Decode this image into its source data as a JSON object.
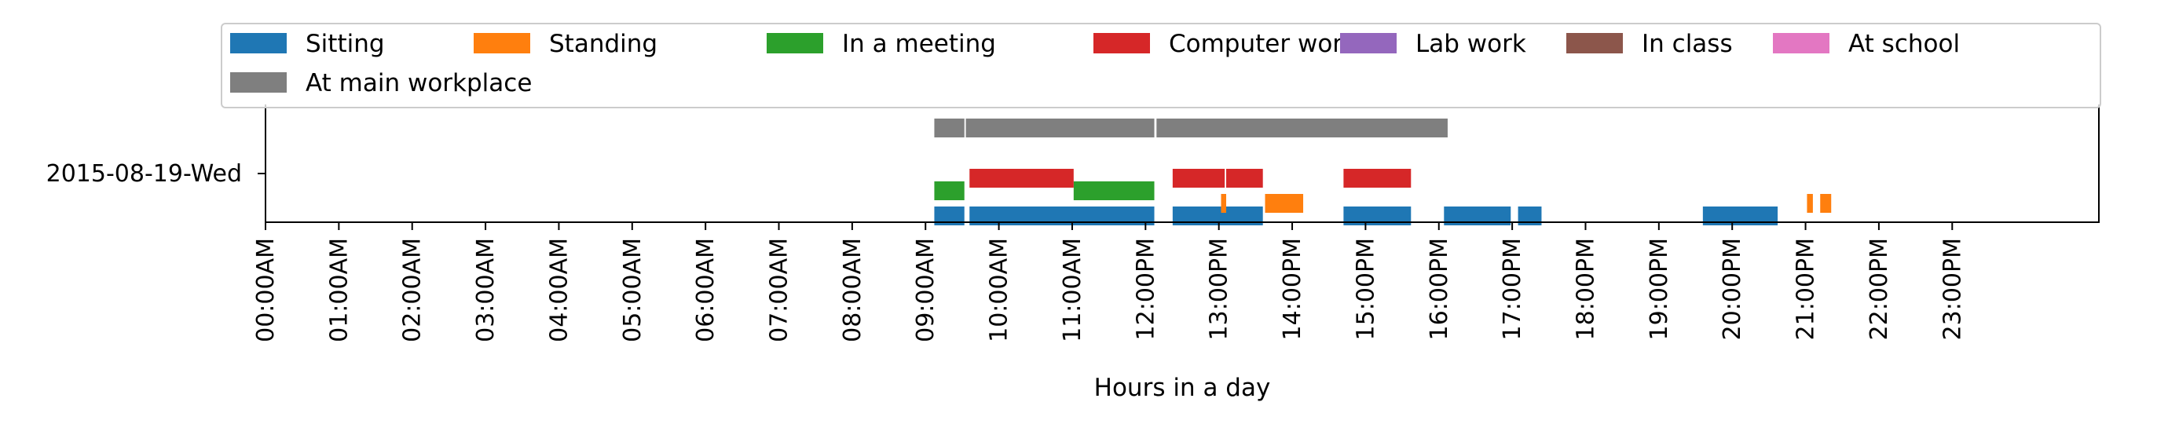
{
  "chart_data": {
    "type": "bar",
    "orientation": "horizontal-timeline",
    "xlabel": "Hours in a day",
    "ylabel": "",
    "xlim": [
      0,
      24
    ],
    "x_ticks": [
      {
        "value": 0,
        "label": "00:00AM"
      },
      {
        "value": 1,
        "label": "01:00AM"
      },
      {
        "value": 2,
        "label": "02:00AM"
      },
      {
        "value": 3,
        "label": "03:00AM"
      },
      {
        "value": 4,
        "label": "04:00AM"
      },
      {
        "value": 5,
        "label": "05:00AM"
      },
      {
        "value": 6,
        "label": "06:00AM"
      },
      {
        "value": 7,
        "label": "07:00AM"
      },
      {
        "value": 8,
        "label": "08:00AM"
      },
      {
        "value": 9,
        "label": "09:00AM"
      },
      {
        "value": 10,
        "label": "10:00AM"
      },
      {
        "value": 11,
        "label": "11:00AM"
      },
      {
        "value": 12,
        "label": "12:00PM"
      },
      {
        "value": 13,
        "label": "13:00PM"
      },
      {
        "value": 14,
        "label": "14:00PM"
      },
      {
        "value": 15,
        "label": "15:00PM"
      },
      {
        "value": 16,
        "label": "16:00PM"
      },
      {
        "value": 17,
        "label": "17:00PM"
      },
      {
        "value": 18,
        "label": "18:00PM"
      },
      {
        "value": 19,
        "label": "19:00PM"
      },
      {
        "value": 20,
        "label": "20:00PM"
      },
      {
        "value": 21,
        "label": "21:00PM"
      },
      {
        "value": 22,
        "label": "22:00PM"
      },
      {
        "value": 23,
        "label": "23:00PM"
      }
    ],
    "y_tick": "2015-08-19-Wed",
    "grid": false,
    "legend_position": "top",
    "series": [
      {
        "name": "Sitting",
        "color": "#1f77b4",
        "segments": [
          [
            9.12,
            9.53
          ],
          [
            9.6,
            12.12
          ],
          [
            12.37,
            13.6
          ],
          [
            14.7,
            15.62
          ],
          [
            16.07,
            16.98
          ],
          [
            17.08,
            17.4
          ],
          [
            19.6,
            20.62
          ]
        ]
      },
      {
        "name": "Standing",
        "color": "#ff7f0e",
        "segments": [
          [
            13.03,
            13.1
          ],
          [
            13.63,
            14.15
          ],
          [
            21.02,
            21.1
          ],
          [
            21.2,
            21.35
          ]
        ]
      },
      {
        "name": "In a meeting",
        "color": "#2ca02c",
        "segments": [
          [
            9.12,
            9.53
          ],
          [
            11.02,
            12.12
          ]
        ]
      },
      {
        "name": "Computer work",
        "color": "#d62728",
        "segments": [
          [
            9.6,
            11.02
          ],
          [
            12.37,
            13.08
          ],
          [
            13.1,
            13.6
          ],
          [
            14.7,
            15.62
          ]
        ]
      },
      {
        "name": "Lab work",
        "color": "#9467bd",
        "segments": []
      },
      {
        "name": "In class",
        "color": "#8c564b",
        "segments": []
      },
      {
        "name": "At school",
        "color": "#e377c2",
        "segments": []
      },
      {
        "name": "At main workplace",
        "color": "#7f7f7f",
        "segments": [
          [
            9.12,
            9.53
          ],
          [
            9.55,
            12.12
          ],
          [
            12.15,
            16.12
          ]
        ]
      }
    ]
  }
}
